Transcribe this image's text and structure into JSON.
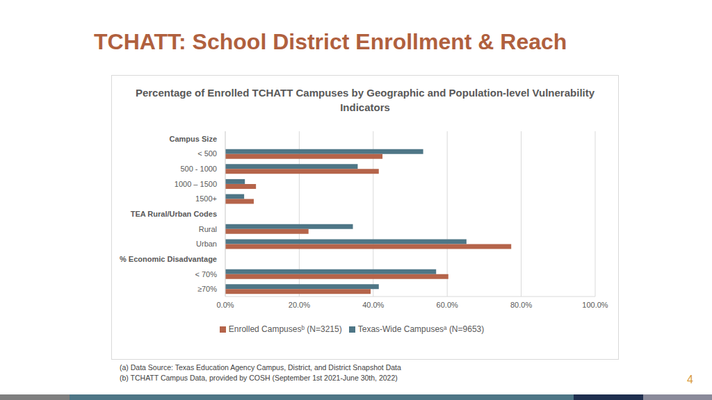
{
  "slide": {
    "title": "TCHATT: School District Enrollment & Reach",
    "footnotes": [
      "(a) Data Source: Texas Education Agency Campus, District, and District Snapshot Data",
      "(b) TCHATT Campus Data, provided by COSH (September 1st 2021-June 30th, 2022)"
    ],
    "page_number": "4"
  },
  "chart_data": {
    "type": "bar",
    "orientation": "horizontal",
    "title": "Percentage of Enrolled TCHATT Campuses by Geographic and Population-level Vulnerability Indicators",
    "categories": [
      "Campus Size",
      "< 500",
      "500 - 1000",
      "1000 – 1500",
      "1500+",
      "TEA Rural/Urban Codes",
      "Rural",
      "Urban",
      "% Economic Disadvantage",
      "< 70%",
      "≥70%"
    ],
    "series": [
      {
        "name": "Texas-Wide Campusesᵃ (N=9653)",
        "color": "#4e7686",
        "values": [
          null,
          53.5,
          35.8,
          5.3,
          5.1,
          null,
          34.5,
          65.2,
          null,
          57.0,
          41.5
        ]
      },
      {
        "name": "Enrolled Campusesᵇ (N=3215)",
        "color": "#b5644a",
        "values": [
          null,
          42.5,
          41.5,
          8.3,
          7.7,
          null,
          22.5,
          77.3,
          null,
          60.3,
          39.3
        ]
      }
    ],
    "xlim": [
      0,
      100
    ],
    "xticks": [
      {
        "value": 0,
        "label": "0.0%"
      },
      {
        "value": 20,
        "label": "20.0%"
      },
      {
        "value": 40,
        "label": "40.0%"
      },
      {
        "value": 60,
        "label": "60.0%"
      },
      {
        "value": 80,
        "label": "80.0%"
      },
      {
        "value": 100,
        "label": "100.0%"
      }
    ],
    "grid": true,
    "legend": "bottom"
  }
}
